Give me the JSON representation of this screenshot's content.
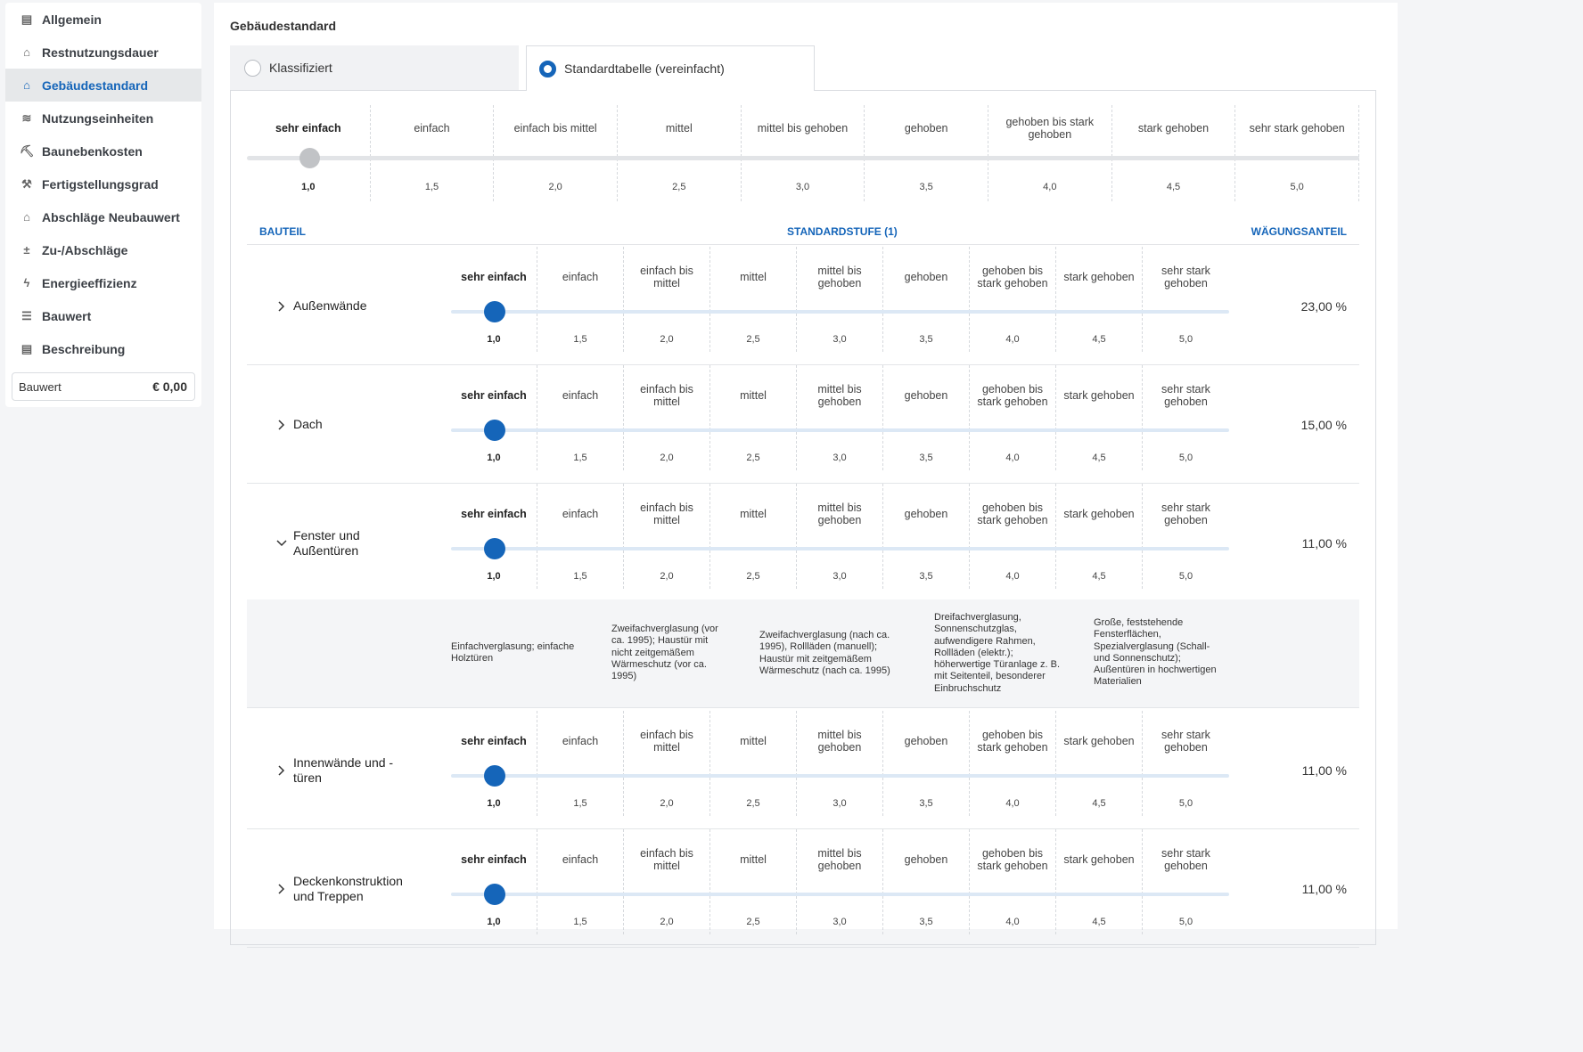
{
  "sidebar": {
    "items": [
      {
        "label": "Allgemein",
        "icon": "document-icon",
        "active": false
      },
      {
        "label": "Restnutzungsdauer",
        "icon": "house-clock-icon",
        "active": false
      },
      {
        "label": "Gebäudestandard",
        "icon": "house-check-icon",
        "active": true
      },
      {
        "label": "Nutzungseinheiten",
        "icon": "layers-icon",
        "active": false
      },
      {
        "label": "Baunebenkosten",
        "icon": "worker-icon",
        "active": false
      },
      {
        "label": "Fertigstellungsgrad",
        "icon": "hammer-icon",
        "active": false
      },
      {
        "label": "Abschläge Neubauwert",
        "icon": "house-down-icon",
        "active": false
      },
      {
        "label": "Zu-/Abschläge",
        "icon": "plus-minus-icon",
        "active": false
      },
      {
        "label": "Energieeffizienz",
        "icon": "lightning-icon",
        "active": false
      },
      {
        "label": "Bauwert",
        "icon": "checklist-icon",
        "active": false
      },
      {
        "label": "Beschreibung",
        "icon": "document-text-icon",
        "active": false
      }
    ],
    "total": {
      "label": "Bauwert",
      "value": "€ 0,00"
    }
  },
  "main": {
    "title": "Gebäudestandard",
    "tabs": [
      {
        "label": "Klassifiziert",
        "selected": false
      },
      {
        "label": "Standardtabelle (vereinfacht)",
        "selected": true
      }
    ]
  },
  "global_slider": {
    "labels": [
      "sehr einfach",
      "einfach",
      "einfach bis mittel",
      "mittel",
      "mittel bis gehoben",
      "gehoben",
      "gehoben bis stark gehoben",
      "stark gehoben",
      "sehr stark gehoben"
    ],
    "values": [
      "1,0",
      "1,5",
      "2,0",
      "2,5",
      "3,0",
      "3,5",
      "4,0",
      "4,5",
      "5,0"
    ],
    "selected_index": 0
  },
  "table": {
    "header": {
      "bauteil": "BAUTEIL",
      "stufe": "STANDARDSTUFE (1)",
      "weight": "WÄGUNGSANTEIL"
    },
    "row_labels": [
      "sehr einfach",
      "einfach",
      "einfach bis mittel",
      "mittel",
      "mittel bis gehoben",
      "gehoben",
      "gehoben bis stark gehoben",
      "stark gehoben",
      "sehr stark gehoben"
    ],
    "row_values": [
      "1,0",
      "1,5",
      "2,0",
      "2,5",
      "3,0",
      "3,5",
      "4,0",
      "4,5",
      "5,0"
    ],
    "rows": [
      {
        "name": "Außenwände",
        "weight": "23,00 %",
        "selected_index": 0,
        "expanded": false
      },
      {
        "name": "Dach",
        "weight": "15,00 %",
        "selected_index": 0,
        "expanded": false
      },
      {
        "name": "Fenster und Außentüren",
        "weight": "11,00 %",
        "selected_index": 0,
        "expanded": true
      },
      {
        "name": "Innenwände und -türen",
        "weight": "11,00 %",
        "selected_index": 0,
        "expanded": false
      },
      {
        "name": "Deckenkonstruktion und Treppen",
        "weight": "11,00 %",
        "selected_index": 0,
        "expanded": false
      }
    ],
    "detail": [
      "Einfachverglasung; einfache Holztüren",
      "Zweifachverglasung (vor ca. 1995); Haustür mit nicht zeitgemäßem Wärmeschutz (vor ca. 1995)",
      "Zweifachverglasung (nach ca. 1995), Rollläden (manuell); Haustür mit zeitgemäßem Wärmeschutz (nach ca. 1995)",
      "Dreifachverglasung, Sonnenschutzglas, aufwendigere Rahmen, Rollläden (elektr.); höherwertige Türanlage z. B. mit Seitenteil, besonderer Einbruchschutz",
      "Große, feststehende Fensterflächen, Spezialverglasung (Schall- und Sonnenschutz); Außentüren in hochwertigen Materialien"
    ]
  },
  "colors": {
    "accent": "#1565b9",
    "track": "#dce8f5",
    "sidebar_active_bg": "#e6e8ea"
  }
}
